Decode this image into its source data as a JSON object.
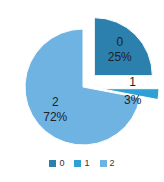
{
  "chart_data": {
    "type": "pie",
    "categories": [
      "0",
      "1",
      "2"
    ],
    "values": [
      25,
      3,
      72
    ],
    "value_labels": [
      "25%",
      "3%",
      "72%"
    ],
    "colors": [
      "#2b80ad",
      "#2f9fd8",
      "#6fb3e3"
    ],
    "legend": "bottom",
    "data_labels": true
  }
}
